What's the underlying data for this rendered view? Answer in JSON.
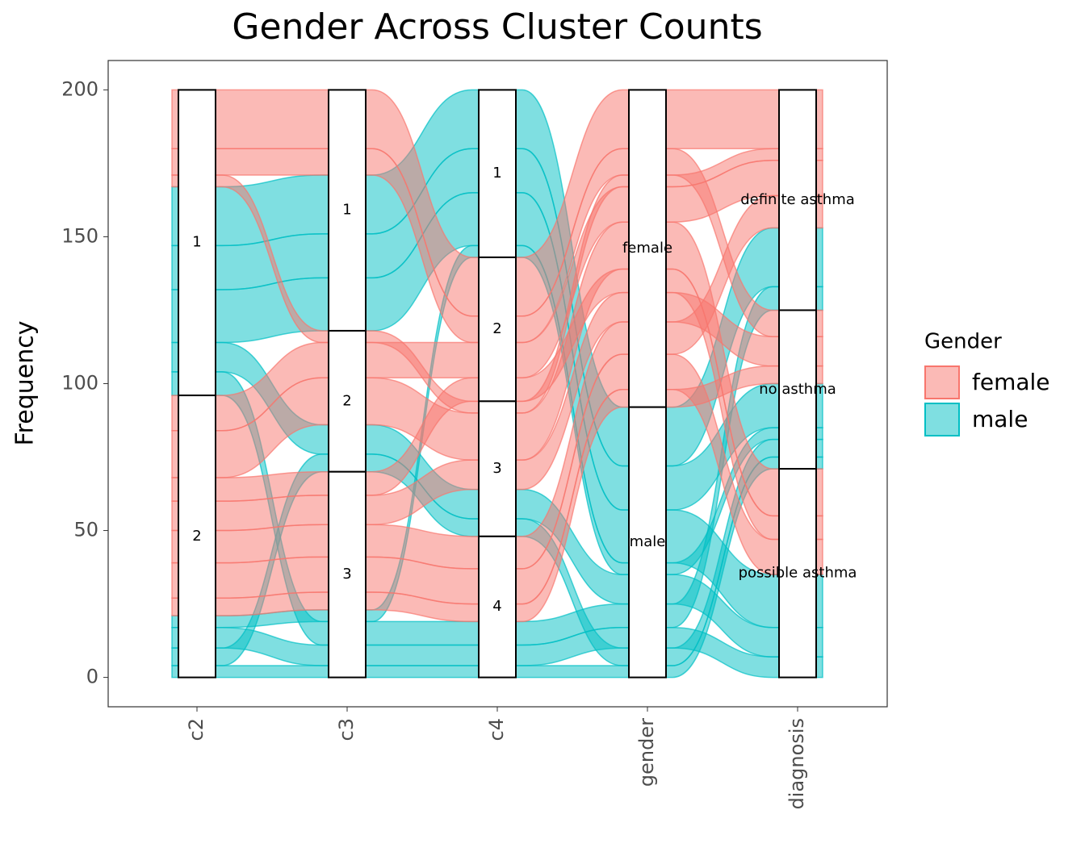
{
  "chart_data": {
    "type": "alluvial",
    "title": "Gender Across Cluster Counts",
    "y_label": "Frequency",
    "ylim": [
      -10,
      210
    ],
    "yticks": [
      0,
      50,
      100,
      150,
      200
    ],
    "grid": false,
    "legend_title": "Gender",
    "legend_position": "right",
    "series": [
      {
        "name": "female",
        "color": "#f8766d"
      },
      {
        "name": "male",
        "color": "#00bfc4"
      }
    ],
    "dimensions": [
      {
        "name": "c2",
        "strata": [
          "1",
          "2"
        ]
      },
      {
        "name": "c3",
        "strata": [
          "1",
          "2",
          "3"
        ]
      },
      {
        "name": "c4",
        "strata": [
          "1",
          "2",
          "3",
          "4"
        ]
      },
      {
        "name": "gender",
        "strata": [
          "female",
          "male"
        ]
      },
      {
        "name": "diagnosis",
        "strata": [
          "definite asthma",
          "no asthma",
          "possible asthma"
        ]
      }
    ],
    "alluvia": [
      {
        "series": "male",
        "path": [
          "1",
          "1",
          "1",
          "male",
          "definite asthma"
        ],
        "count": 20
      },
      {
        "series": "male",
        "path": [
          "1",
          "1",
          "1",
          "male",
          "no asthma"
        ],
        "count": 15
      },
      {
        "series": "male",
        "path": [
          "1",
          "1",
          "1",
          "male",
          "possible asthma"
        ],
        "count": 18
      },
      {
        "series": "male",
        "path": [
          "2",
          "3",
          "1",
          "male",
          "no asthma"
        ],
        "count": 4
      },
      {
        "series": "male",
        "path": [
          "1",
          "2",
          "3",
          "male",
          "possible asthma"
        ],
        "count": 10
      },
      {
        "series": "male",
        "path": [
          "1",
          "3",
          "4",
          "male",
          "definite asthma"
        ],
        "count": 8
      },
      {
        "series": "male",
        "path": [
          "2",
          "3",
          "4",
          "male",
          "possible asthma"
        ],
        "count": 7
      },
      {
        "series": "male",
        "path": [
          "2",
          "2",
          "3",
          "male",
          "no asthma"
        ],
        "count": 6
      },
      {
        "series": "male",
        "path": [
          "2",
          "3",
          "4",
          "male",
          "no asthma"
        ],
        "count": 4
      },
      {
        "series": "female",
        "path": [
          "1",
          "1",
          "2",
          "female",
          "definite asthma"
        ],
        "count": 20
      },
      {
        "series": "female",
        "path": [
          "1",
          "1",
          "2",
          "female",
          "no asthma"
        ],
        "count": 9
      },
      {
        "series": "female",
        "path": [
          "1",
          "2",
          "3",
          "female",
          "definite asthma"
        ],
        "count": 4
      },
      {
        "series": "female",
        "path": [
          "2",
          "2",
          "2",
          "female",
          "definite asthma"
        ],
        "count": 12
      },
      {
        "series": "female",
        "path": [
          "2",
          "2",
          "3",
          "female",
          "possible asthma"
        ],
        "count": 16
      },
      {
        "series": "female",
        "path": [
          "2",
          "3",
          "2",
          "female",
          "possible asthma"
        ],
        "count": 8
      },
      {
        "series": "female",
        "path": [
          "2",
          "3",
          "3",
          "female",
          "no asthma"
        ],
        "count": 10
      },
      {
        "series": "female",
        "path": [
          "2",
          "3",
          "4",
          "female",
          "definite asthma"
        ],
        "count": 11
      },
      {
        "series": "female",
        "path": [
          "2",
          "3",
          "4",
          "female",
          "possible asthma"
        ],
        "count": 12
      },
      {
        "series": "female",
        "path": [
          "2",
          "3",
          "4",
          "female",
          "no asthma"
        ],
        "count": 6
      }
    ]
  }
}
